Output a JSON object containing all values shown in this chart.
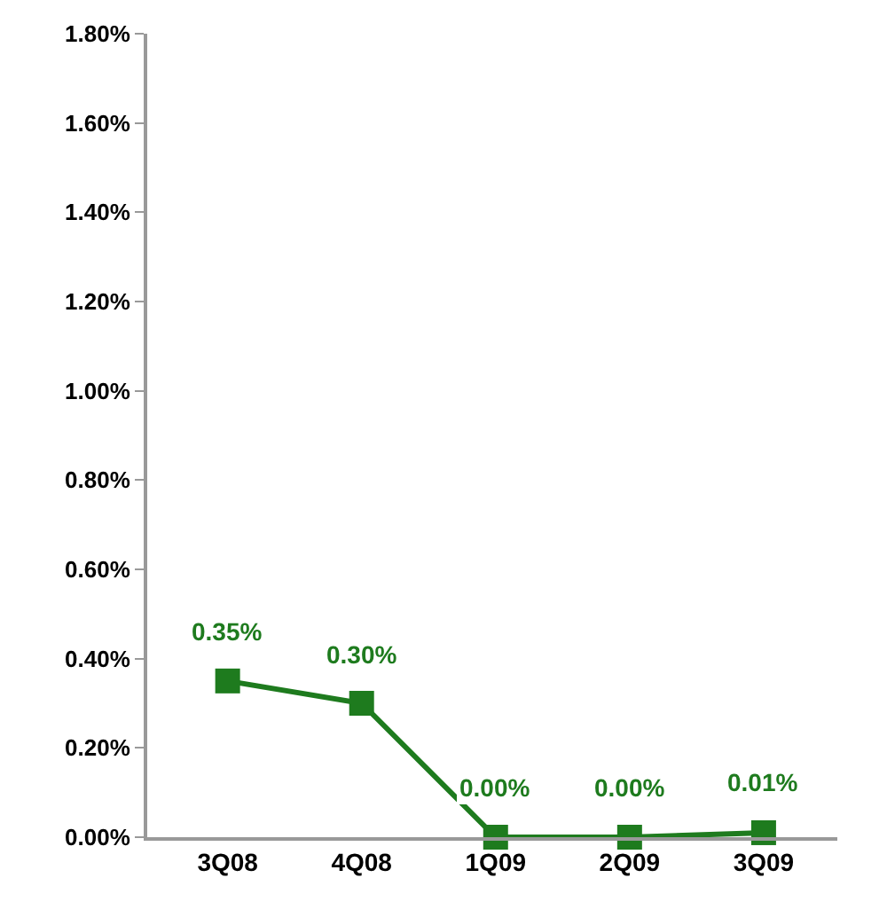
{
  "chart_data": {
    "type": "line",
    "categories": [
      "3Q08",
      "4Q08",
      "1Q09",
      "2Q09",
      "3Q09"
    ],
    "series": [
      {
        "color": "#1e7b1e",
        "values": [
          0.35,
          0.3,
          0.0,
          0.0,
          0.01
        ],
        "value_labels": [
          "0.35%",
          "0.30%",
          "0.00%",
          "0.00%",
          "0.01%"
        ]
      }
    ],
    "ylim": [
      0,
      1.8
    ],
    "yticks": [
      {
        "value": 0,
        "label": "0.00%"
      },
      {
        "value": 0.2,
        "label": "0.20%"
      },
      {
        "value": 0.4,
        "label": "0.40%"
      },
      {
        "value": 0.6,
        "label": "0.60%"
      },
      {
        "value": 0.8,
        "label": "0.80%"
      },
      {
        "value": 1.0,
        "label": "1.00%"
      },
      {
        "value": 1.2,
        "label": "1.20%"
      },
      {
        "value": 1.4,
        "label": "1.40%"
      },
      {
        "value": 1.6,
        "label": "1.60%"
      },
      {
        "value": 1.8,
        "label": "1.80%"
      }
    ],
    "marker": "square",
    "line_style": "solid"
  }
}
